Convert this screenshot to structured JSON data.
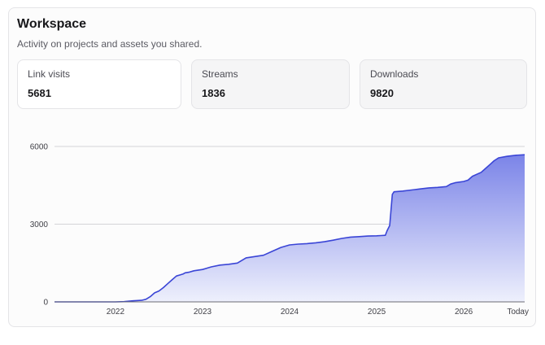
{
  "card": {
    "title": "Workspace",
    "subtitle": "Activity on projects and assets you shared."
  },
  "stats": [
    {
      "label": "Link visits",
      "value": "5681"
    },
    {
      "label": "Streams",
      "value": "1836"
    },
    {
      "label": "Downloads",
      "value": "9820"
    }
  ],
  "chart_data": {
    "type": "area",
    "title": "",
    "xlabel": "",
    "ylabel": "",
    "ylim": [
      0,
      6000
    ],
    "xlim": [
      2021.3,
      2026.7
    ],
    "y_ticks": [
      {
        "label": "6000",
        "value": 6000
      },
      {
        "label": "3000",
        "value": 3000
      },
      {
        "label": "0",
        "value": 0
      }
    ],
    "x_ticks": [
      {
        "label": "2022",
        "value": 2022
      },
      {
        "label": "2023",
        "value": 2023
      },
      {
        "label": "2024",
        "value": 2024
      },
      {
        "label": "2025",
        "value": 2025
      },
      {
        "label": "2026",
        "value": 2026
      },
      {
        "label": "Today",
        "value": 2026.7
      }
    ],
    "grid": true,
    "colors": {
      "line": "#3a45d6",
      "fill_top": "#7b84e8",
      "fill_bottom": "#eef0fc",
      "grid": "#d4d4d8",
      "axis": "#6b6b74"
    },
    "series": [
      {
        "x": [
          2021.3,
          2022.0,
          2022.1,
          2022.2,
          2022.3,
          2022.35,
          2022.4,
          2022.45,
          2022.5,
          2022.55,
          2022.6,
          2022.65,
          2022.7,
          2022.75,
          2022.78,
          2022.8,
          2022.85,
          2022.9,
          2023.0,
          2023.1,
          2023.2,
          2023.3,
          2023.4,
          2023.5,
          2023.6,
          2023.7,
          2023.8,
          2023.9,
          2024.0,
          2024.1,
          2024.2,
          2024.3,
          2024.4,
          2024.5,
          2024.6,
          2024.7,
          2024.8,
          2024.9,
          2025.0,
          2025.05,
          2025.1,
          2025.12,
          2025.15,
          2025.18,
          2025.2,
          2025.3,
          2025.4,
          2025.5,
          2025.6,
          2025.7,
          2025.8,
          2025.85,
          2025.9,
          2026.0,
          2026.05,
          2026.1,
          2026.2,
          2026.25,
          2026.3,
          2026.35,
          2026.4,
          2026.5,
          2026.6,
          2026.7
        ],
        "y": [
          0,
          0,
          10,
          40,
          60,
          100,
          200,
          350,
          420,
          550,
          700,
          850,
          1000,
          1050,
          1080,
          1120,
          1150,
          1200,
          1250,
          1350,
          1420,
          1450,
          1500,
          1700,
          1750,
          1800,
          1950,
          2100,
          2200,
          2230,
          2250,
          2280,
          2320,
          2380,
          2450,
          2500,
          2520,
          2540,
          2550,
          2560,
          2570,
          2750,
          2950,
          4150,
          4250,
          4280,
          4320,
          4360,
          4400,
          4420,
          4450,
          4550,
          4600,
          4650,
          4700,
          4850,
          5000,
          5150,
          5300,
          5450,
          5560,
          5620,
          5660,
          5681
        ]
      }
    ]
  }
}
